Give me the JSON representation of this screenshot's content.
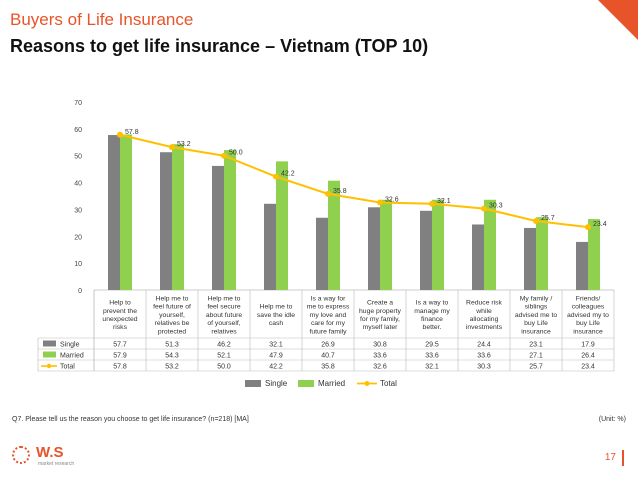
{
  "header": {
    "eyebrow": "Buyers of Life Insurance",
    "title": "Reasons to get life insurance – Vietnam (TOP 10)"
  },
  "footer": {
    "question": "Q7. Please tell us the reason you choose to get life insurance? (n=218) [MA]",
    "unit": "(Unit: %)",
    "page_number": "17"
  },
  "logo": {
    "text": "W.S",
    "sub": "market research"
  },
  "colors": {
    "accent": "#e8542a",
    "single": "#808080",
    "married": "#8fd14f",
    "total": "#ffc000"
  },
  "chart_data": {
    "type": "bar",
    "categories": [
      [
        "Help to",
        "prevent the",
        "unexpected",
        "risks"
      ],
      [
        "Help me to",
        "feel future of",
        "yourself,",
        "relatives be",
        "protected"
      ],
      [
        "Help me to",
        "feel secure",
        "about future",
        "of yourself,",
        "relatives"
      ],
      [
        "Help me to",
        "save the idle",
        "cash"
      ],
      [
        "Is a way for",
        "me to express",
        "my love and",
        "care for my",
        "future family"
      ],
      [
        "Create a",
        "huge property",
        "for my family,",
        "myself later"
      ],
      [
        "Is a way to",
        "manage my",
        "finance",
        "better."
      ],
      [
        "Reduce risk",
        "while",
        "allocating",
        "investments"
      ],
      [
        "My family /",
        "siblings",
        "advised me to",
        "buy Life",
        "insurance"
      ],
      [
        "Friends/",
        "colleagues",
        "advised my to",
        "buy Life",
        "insurance"
      ]
    ],
    "series": [
      {
        "name": "Single",
        "kind": "bar",
        "values": [
          57.7,
          51.3,
          46.2,
          32.1,
          26.9,
          30.8,
          29.5,
          24.4,
          23.1,
          17.9
        ],
        "display": [
          "57.7",
          "51.3",
          "46.2",
          "32.1",
          "26.9",
          "30.8",
          "29.5",
          "24.4",
          "23.1",
          "17.9"
        ]
      },
      {
        "name": "Married",
        "kind": "bar",
        "values": [
          57.9,
          54.3,
          52.1,
          47.9,
          40.7,
          33.6,
          33.6,
          33.6,
          27.1,
          26.4
        ],
        "display": [
          "57.9",
          "54.3",
          "52.1",
          "47.9",
          "40.7",
          "33.6",
          "33.6",
          "33.6",
          "27.1",
          "26.4"
        ]
      },
      {
        "name": "Total",
        "kind": "line",
        "values": [
          57.8,
          53.2,
          50.0,
          42.2,
          35.8,
          32.6,
          32.1,
          30.3,
          25.7,
          23.4
        ],
        "display": [
          "57.8",
          "53.2",
          "50.0",
          "42.2",
          "35.8",
          "32.6",
          "32.1",
          "30.3",
          "25.7",
          "23.4"
        ]
      }
    ],
    "ylim": [
      0,
      70
    ],
    "yticks": [
      "0",
      "10",
      "20",
      "30",
      "40",
      "50",
      "60",
      "70"
    ],
    "grid": false,
    "legend": "bottom",
    "data_table": true
  }
}
